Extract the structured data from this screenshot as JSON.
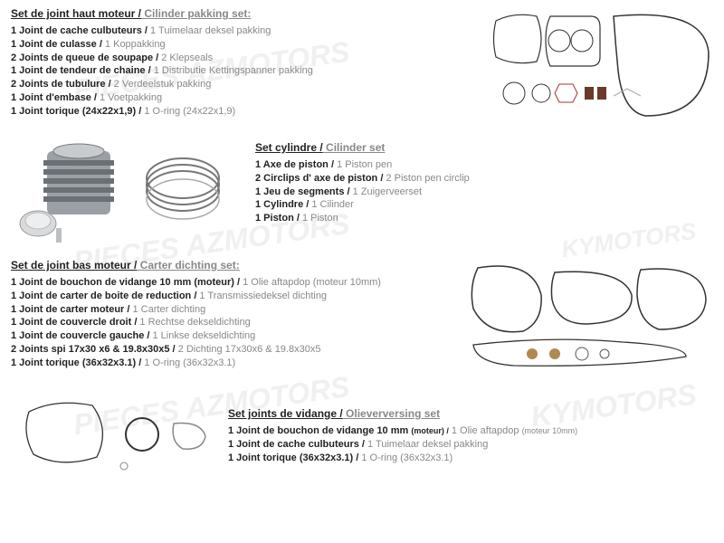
{
  "sections": [
    {
      "title_fr": "Set de joint haut moteur /",
      "title_nl": " Cilinder pakking set:",
      "items": [
        {
          "fr": "1 Joint de cache culbuteurs  /",
          "nl": " 1 Tuimelaar deksel pakking"
        },
        {
          "fr": "1 Joint de culasse /",
          "nl": " 1 Koppakking"
        },
        {
          "fr": "2 Joints de queue de soupape /",
          "nl": " 2 Klepseals"
        },
        {
          "fr": "1 Joint de tendeur de chaine /",
          "nl": " 1 Distributie Kettingspanner pakking"
        },
        {
          "fr": "2 Joints de tubulure /",
          "nl": " 2 Verdeelstuk pakking"
        },
        {
          "fr": "1 Joint d'embase /",
          "nl": " 1 Voetpakking"
        },
        {
          "fr": "1 Joint torique  (24x22x1,9) /",
          "nl": " 1 O-ring (24x22x1,9)"
        }
      ]
    },
    {
      "title_fr": "Set cylindre /",
      "title_nl": " Cilinder set",
      "items": [
        {
          "fr": "1 Axe de piston /",
          "nl": " 1 Piston pen"
        },
        {
          "fr": "2 Circlips d' axe de piston /",
          "nl": " 2 Piston pen circlip"
        },
        {
          "fr": "1 Jeu de segments /",
          "nl": " 1 Zuigerveerset"
        },
        {
          "fr": "1 Cylindre /",
          "nl": " 1 Cilinder"
        },
        {
          "fr": "1 Piston /",
          "nl": " 1 Piston"
        }
      ]
    },
    {
      "title_fr": "Set de joint bas moteur /",
      "title_nl": " Carter dichting set:",
      "items": [
        {
          "fr": "1 Joint de bouchon de vidange 10 mm (moteur) /",
          "nl": " 1 Olie aftapdop (moteur 10mm)"
        },
        {
          "fr": "1 Joint de carter de boite de reduction /",
          "nl": " 1 Transmissiedeksel dichting"
        },
        {
          "fr": "1 Joint de carter moteur /",
          "nl": " 1 Carter dichting"
        },
        {
          "fr": "1 Joint de couvercle droit  /",
          "nl": " 1 Rechtse dekseldichting"
        },
        {
          "fr": "1 Joint de couvercle gauche /",
          "nl": " 1 Linkse dekseldichting"
        },
        {
          "fr": "2 Joints spi 17x30 x6 & 19.8x30x5 /",
          "nl": " 2 Dichting 17x30x6 & 19.8x30x5"
        },
        {
          "fr": "1 Joint torique (36x32x3.1) /",
          "nl": " 1 O-ring (36x32x3.1)"
        }
      ]
    },
    {
      "title_fr": "Set joints de vidange /",
      "title_nl": " Olieverversing set",
      "items": [
        {
          "fr": "1 Joint de bouchon de vidange 10 mm ",
          "nl": " 1 Olie aftapdop ",
          "fr_sm": "(moteur) /",
          "nl_sm": "(moteur 10mm)"
        },
        {
          "fr": "1 Joint de cache culbuteurs  /",
          "nl": " 1 Tuimelaar deksel pakking"
        },
        {
          "fr": "1 Joint torique (36x32x3.1) /",
          "nl": " 1 O-ring (36x32x3.1)"
        }
      ]
    }
  ],
  "style": {
    "fr_color": "#222222",
    "nl_color": "#888888",
    "bg": "#ffffff",
    "font_size": 11
  }
}
